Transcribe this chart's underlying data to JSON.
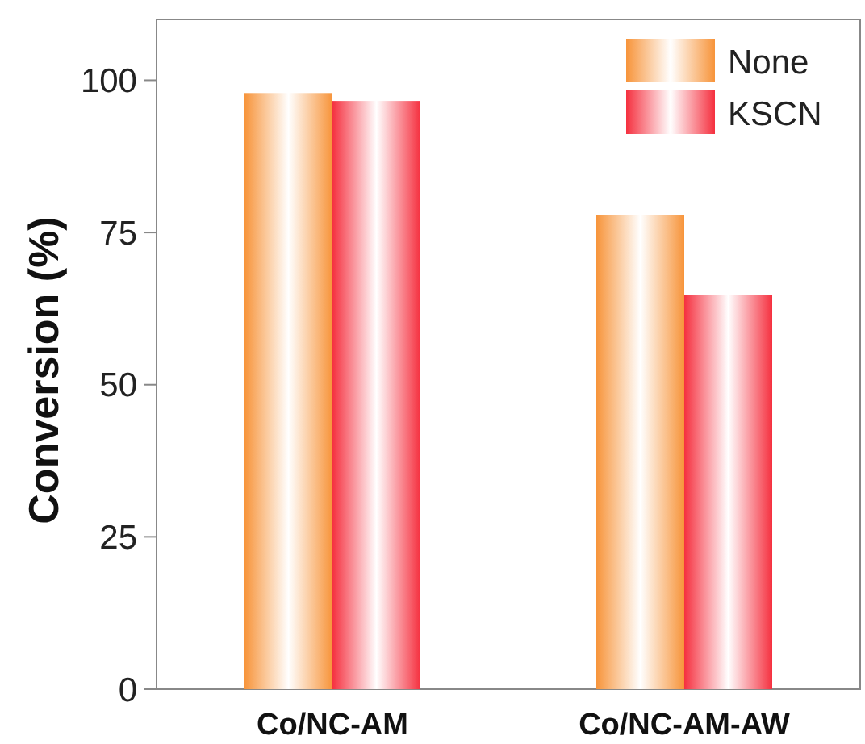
{
  "chart_data": {
    "type": "bar",
    "ylabel": "Conversion (%)",
    "categories": [
      "Co/NC-AM",
      "Co/NC-AM-AW"
    ],
    "series": [
      {
        "name": "None",
        "color": "#f7943a",
        "values": [
          97.9,
          77.8
        ]
      },
      {
        "name": "KSCN",
        "color": "#f5303f",
        "values": [
          96.6,
          64.8
        ]
      }
    ],
    "ylim": [
      0,
      110
    ],
    "yticks": [
      0,
      25,
      50,
      75,
      100
    ],
    "grid": false,
    "legend": "top right"
  }
}
